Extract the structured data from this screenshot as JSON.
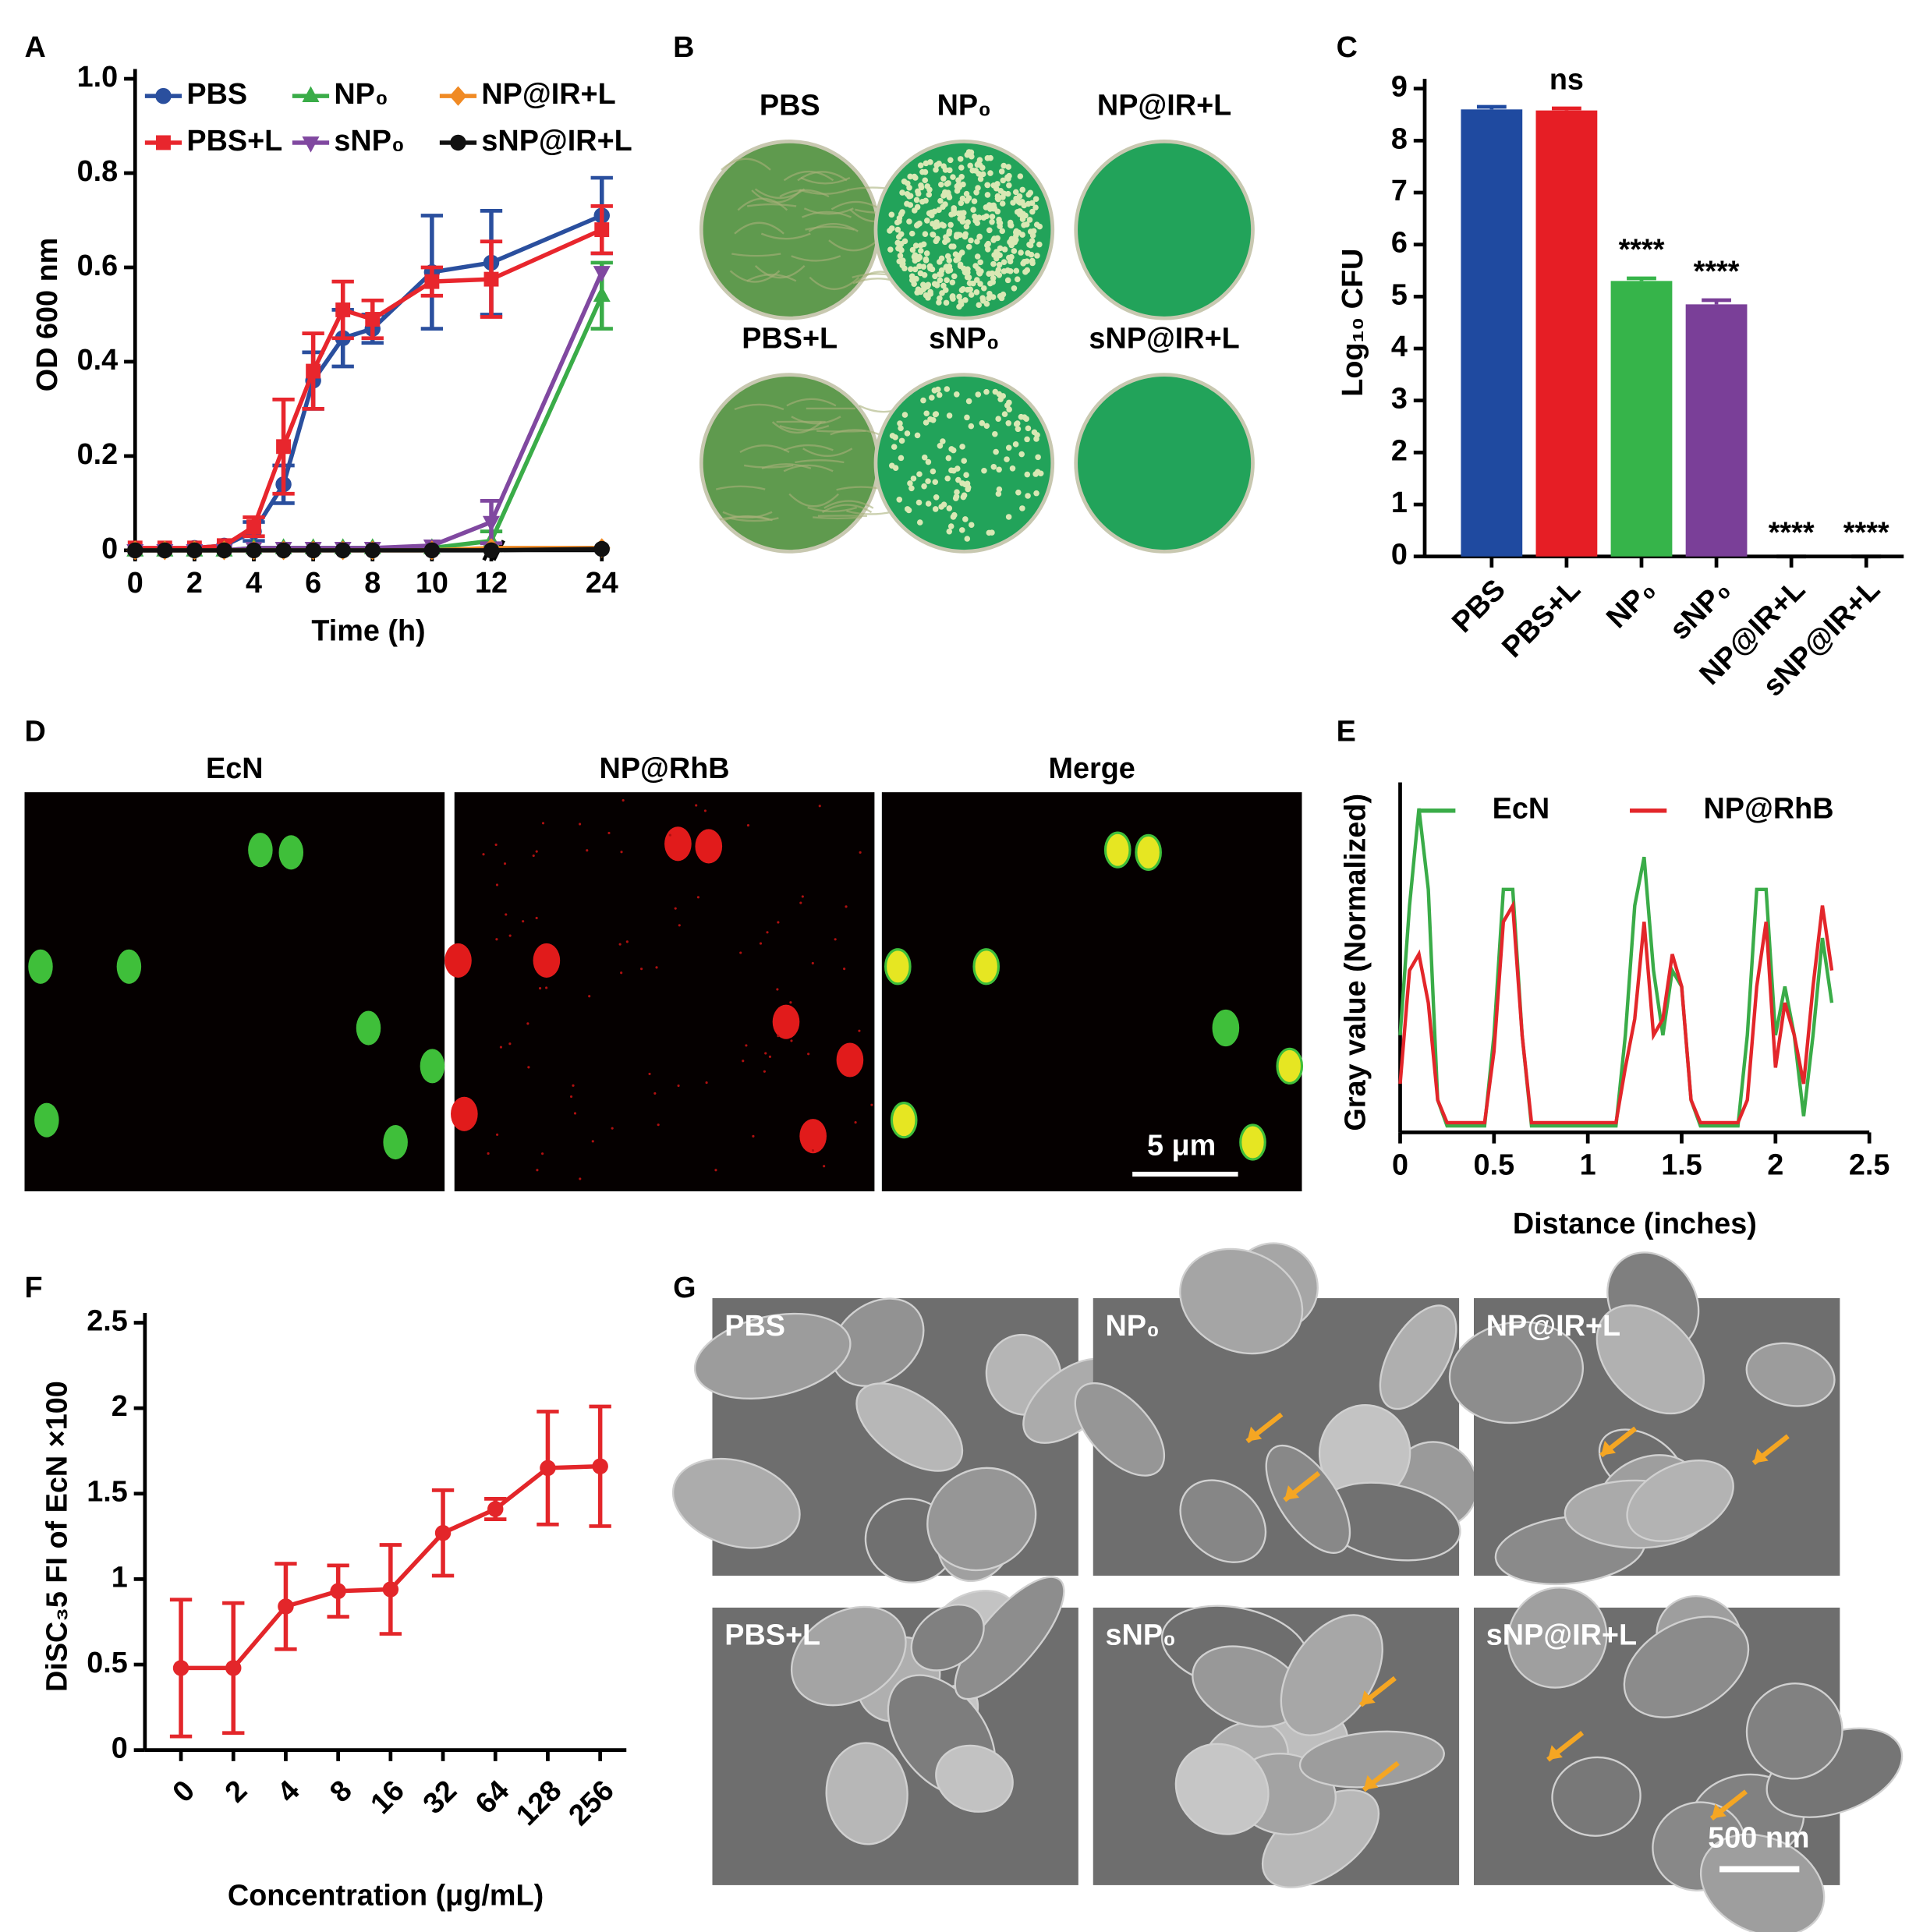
{
  "panel_letters": [
    "A",
    "B",
    "C",
    "D",
    "E",
    "F",
    "G"
  ],
  "chart_data": [
    {
      "type": "line",
      "xlabel": "Time (h)",
      "ylabel": "OD 600 nm",
      "x": [
        0,
        1,
        2,
        3,
        4,
        5,
        6,
        7,
        8,
        10,
        12,
        24
      ],
      "xlim": [
        0,
        24
      ],
      "xticks": [
        0,
        2,
        4,
        6,
        8,
        10,
        12,
        24
      ],
      "axis_break": true,
      "ylim": [
        0,
        1
      ],
      "yticks": [
        0,
        0.2,
        0.4,
        0.6,
        0.8,
        {
          "value": 1,
          "label": "1.0"
        }
      ],
      "legend": "top-left",
      "series": [
        {
          "name": "PBS",
          "color": "#2a4f9e",
          "marker": "circle",
          "values": [
            0,
            0,
            0.005,
            0.01,
            0.04,
            0.14,
            0.36,
            0.45,
            0.47,
            0.59,
            0.61,
            0.71
          ],
          "errors": [
            null,
            null,
            null,
            null,
            0.02,
            0.04,
            0.06,
            0.06,
            0.03,
            0.12,
            0.11,
            0.08
          ]
        },
        {
          "name": "PBS+L",
          "color": "#e8262d",
          "marker": "square",
          "values": [
            0.005,
            0.005,
            0.005,
            0.01,
            0.05,
            0.22,
            0.38,
            0.51,
            0.49,
            0.57,
            0.575,
            0.68
          ],
          "errors": [
            null,
            null,
            null,
            null,
            0.02,
            0.1,
            0.08,
            0.06,
            0.04,
            0.03,
            0.08,
            0.05
          ]
        },
        {
          "name": "NP₀",
          "color": "#3aac48",
          "marker": "triangle",
          "values": [
            0,
            0,
            0,
            0,
            0.005,
            0.005,
            0.005,
            0.005,
            0.005,
            0.005,
            0.02,
            0.54
          ],
          "errors": [
            null,
            null,
            null,
            null,
            null,
            null,
            null,
            null,
            null,
            null,
            0.02,
            0.07
          ]
        },
        {
          "name": "sNP₀",
          "color": "#8048a0",
          "marker": "triangle-down",
          "values": [
            0,
            0,
            0,
            0,
            0.005,
            0.005,
            0.005,
            0.005,
            0.005,
            0.01,
            0.06,
            0.59
          ],
          "errors": [
            null,
            null,
            null,
            null,
            null,
            null,
            null,
            null,
            null,
            null,
            0.045,
            null
          ]
        },
        {
          "name": "NP@IR+L",
          "color": "#f08a24",
          "marker": "diamond",
          "values": [
            0,
            0,
            0,
            0,
            0,
            0,
            0,
            0,
            0,
            0,
            0.005,
            0.005
          ]
        },
        {
          "name": "sNP@IR+L",
          "color": "#111111",
          "marker": "circle",
          "values": [
            0,
            0,
            0,
            0,
            0,
            0,
            0,
            0,
            0,
            0,
            0,
            0.003
          ]
        }
      ]
    },
    {
      "type": "bar",
      "ylabel": "Log₁₀ CFU",
      "categories": [
        "PBS",
        "PBS+L",
        "NP₀",
        "sNP₀",
        "NP@IR+L",
        "sNP@IR+L"
      ],
      "values": [
        8.6,
        8.58,
        5.3,
        4.85,
        0,
        0
      ],
      "errors": [
        0.05,
        0.04,
        0.05,
        0.08,
        0,
        0
      ],
      "colors": [
        "#1f4aa0",
        "#e61e25",
        "#36b44a",
        "#7a3f98",
        "#000000",
        "#000000"
      ],
      "significance": [
        null,
        "ns",
        "****",
        "****",
        "****",
        "****"
      ],
      "ylim": [
        0,
        9
      ],
      "yticks": [
        0,
        1,
        2,
        3,
        4,
        5,
        6,
        7,
        8,
        9
      ]
    },
    {
      "type": "line",
      "xlabel": "Distance (inches)",
      "ylabel": "Gray value (Normalized)",
      "x": [
        0,
        0.05,
        0.1,
        0.15,
        0.2,
        0.25,
        0.3,
        0.35,
        0.4,
        0.45,
        0.5,
        0.55,
        0.6,
        0.65,
        0.7,
        0.75,
        0.8,
        0.85,
        0.9,
        0.95,
        1,
        1.05,
        1.1,
        1.15,
        1.2,
        1.25,
        1.3,
        1.35,
        1.4,
        1.45,
        1.5,
        1.55,
        1.6,
        1.65,
        1.7,
        1.75,
        1.8,
        1.85,
        1.9,
        1.95,
        2,
        2.05,
        2.1,
        2.15,
        2.2,
        2.25,
        2.3
      ],
      "xlim": [
        0,
        2.5
      ],
      "xticks": [
        0,
        0.5,
        1,
        1.5,
        2,
        2.5
      ],
      "ylim": [
        0,
        1.05
      ],
      "legend": "top",
      "series": [
        {
          "name": "EcN",
          "color": "#3aac48",
          "values": [
            0.3,
            0.7,
            1,
            0.75,
            0.1,
            0.02,
            0.02,
            0.02,
            0.02,
            0.02,
            0.3,
            0.75,
            0.75,
            0.3,
            0.02,
            0.02,
            0.02,
            0.02,
            0.02,
            0.02,
            0.02,
            0.02,
            0.02,
            0.02,
            0.3,
            0.7,
            0.85,
            0.5,
            0.3,
            0.5,
            0.45,
            0.1,
            0.02,
            0.02,
            0.02,
            0.02,
            0.02,
            0.3,
            0.75,
            0.75,
            0.3,
            0.45,
            0.3,
            0.05,
            0.3,
            0.6,
            0.4
          ]
        },
        {
          "name": "NP@RhB",
          "color": "#e3262a",
          "values": [
            0.15,
            0.5,
            0.55,
            0.4,
            0.1,
            0.03,
            0.03,
            0.03,
            0.03,
            0.03,
            0.25,
            0.65,
            0.7,
            0.3,
            0.03,
            0.03,
            0.03,
            0.03,
            0.03,
            0.03,
            0.03,
            0.03,
            0.03,
            0.03,
            0.2,
            0.35,
            0.65,
            0.3,
            0.35,
            0.55,
            0.45,
            0.1,
            0.03,
            0.03,
            0.03,
            0.03,
            0.03,
            0.1,
            0.45,
            0.65,
            0.2,
            0.4,
            0.3,
            0.15,
            0.45,
            0.7,
            0.5
          ]
        }
      ]
    },
    {
      "type": "line",
      "xlabel": "Concentration (μg/mL)",
      "ylabel": "DiSC₃5 FI of EcN ×100",
      "categories": [
        "0",
        "2",
        "4",
        "8",
        "16",
        "32",
        "64",
        "128",
        "256"
      ],
      "ylim": [
        0,
        2.5
      ],
      "yticks": [
        0,
        0.5,
        1,
        1.5,
        2,
        2.5
      ],
      "series": [
        {
          "color": "#e3262a",
          "marker": "circle",
          "values": [
            0.48,
            0.48,
            0.84,
            0.93,
            0.94,
            1.27,
            1.41,
            1.65,
            1.66
          ],
          "errors": [
            0.4,
            0.38,
            0.25,
            0.15,
            0.26,
            0.25,
            0.06,
            0.33,
            0.35
          ]
        }
      ]
    }
  ],
  "plates": {
    "labels": [
      "PBS",
      "NP₀",
      "NP@IR+L",
      "PBS+L",
      "sNP₀",
      "sNP@IR+L"
    ]
  },
  "fluorescence": {
    "titles": [
      "EcN",
      "NP@RhB",
      "Merge"
    ],
    "scale_bar": "5 μm"
  },
  "sem": {
    "labels": [
      "PBS",
      "NP₀",
      "NP@IR+L",
      "PBS+L",
      "sNP₀",
      "sNP@IR+L"
    ],
    "scale_bar": "500 nm"
  }
}
